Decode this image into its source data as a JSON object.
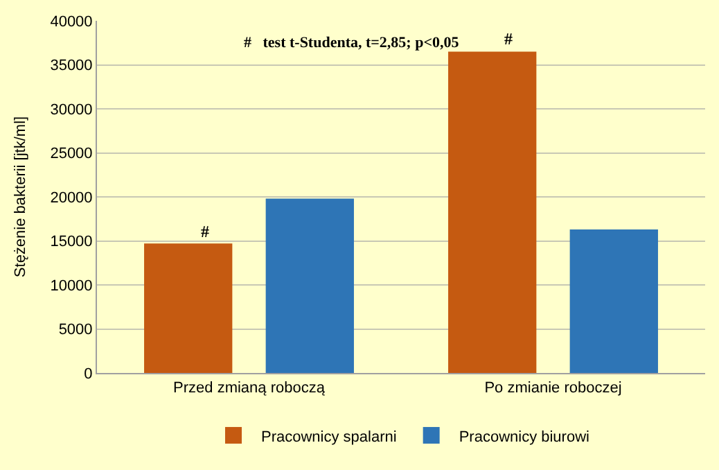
{
  "chart_data": {
    "type": "bar",
    "ylabel": "Stężenie bakterii [jtk/ml]",
    "categories": [
      "Przed zmianą roboczą",
      "Po zmianie roboczej"
    ],
    "series": [
      {
        "name": "Pracownicy spalarni",
        "color": "#c55a11",
        "values": [
          14700,
          36500
        ]
      },
      {
        "name": "Pracownicy biurowi",
        "color": "#2e75b6",
        "values": [
          19800,
          16300
        ]
      }
    ],
    "ylim": [
      0,
      40000
    ],
    "yticks": [
      0,
      5000,
      10000,
      15000,
      20000,
      25000,
      30000,
      35000,
      40000
    ],
    "grid": "y",
    "legend": "bottom",
    "annotations": [
      "#   test t-Studenta, t=2,85; p<0,05",
      "#",
      "#"
    ]
  }
}
